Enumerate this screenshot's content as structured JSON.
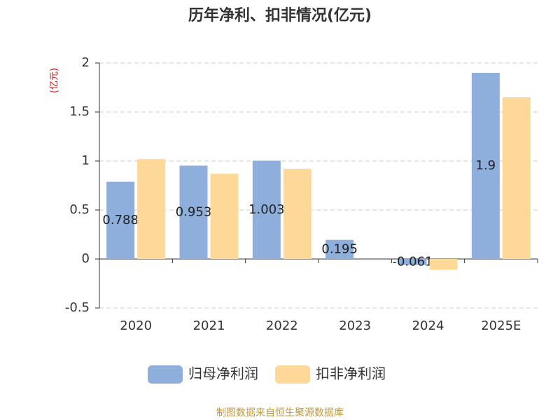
{
  "chart_data": {
    "type": "bar",
    "title": "历年净利、扣非情况(亿元)",
    "y_label": "(亿元)",
    "source": "制图数据来自恒生聚源数据库",
    "categories": [
      "2020",
      "2021",
      "2022",
      "2023",
      "2024",
      "2025E"
    ],
    "series": [
      {
        "name": "归母净利润",
        "color": "#8eaedb",
        "show_labels": true,
        "values": [
          0.788,
          0.953,
          1.003,
          0.195,
          -0.061,
          1.9
        ]
      },
      {
        "name": "扣非净利润",
        "color": "#fed898",
        "show_labels": false,
        "values": [
          1.02,
          0.87,
          0.92,
          null,
          -0.11,
          1.65
        ]
      }
    ],
    "ylim": [
      -0.5,
      2
    ],
    "yticks": [
      -0.5,
      0,
      0.5,
      1,
      1.5,
      2
    ],
    "grid": true
  }
}
